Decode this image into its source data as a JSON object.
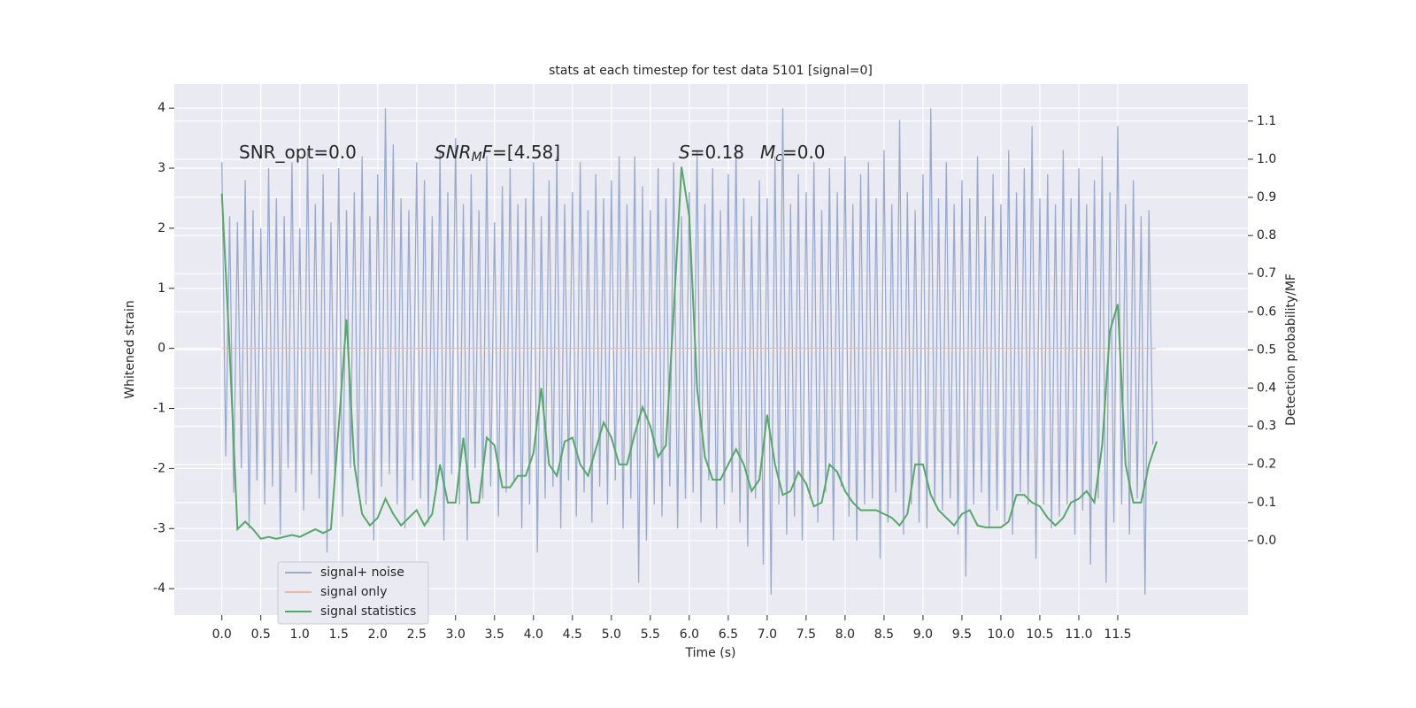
{
  "chart_data": {
    "type": "line",
    "title": "stats at each timestep for test data 5101 [signal=0]",
    "xlabel": "Time (s)",
    "ylabel": "Whitened strain",
    "y2label": "Detection probability/MF",
    "xlim": [
      -0.61,
      13.17
    ],
    "ylim": [
      -4.44,
      4.4
    ],
    "y2lim": [
      -0.195,
      1.197
    ],
    "grid": true,
    "legend": "lower left",
    "xticks": [
      {
        "value": 0,
        "label": "0.0"
      },
      0.5,
      {
        "value": 1,
        "label": "1.0"
      },
      1.5,
      {
        "value": 2,
        "label": "2.0"
      },
      2.5,
      {
        "value": 3,
        "label": "3.0"
      },
      3.5,
      {
        "value": 4,
        "label": "4.0"
      },
      4.5,
      {
        "value": 5,
        "label": "5.0"
      },
      5.5,
      {
        "value": 6,
        "label": "6.0"
      },
      6.5,
      {
        "value": 7,
        "label": "7.0"
      },
      7.5,
      {
        "value": 8,
        "label": "8.0"
      },
      8.5,
      {
        "value": 9,
        "label": "9.0"
      },
      9.5,
      {
        "value": 10,
        "label": "10.0"
      },
      10.5,
      {
        "value": 11,
        "label": "11.0"
      },
      11.5
    ],
    "yticks": [
      -4,
      -3,
      -2,
      -1,
      0,
      1,
      2,
      3,
      4
    ],
    "y2ticks": [
      {
        "value": 0,
        "label": "0.0"
      },
      0.1,
      0.2,
      0.3,
      0.4,
      0.5,
      0.6,
      0.7,
      0.8,
      0.9,
      {
        "value": 1,
        "label": "1.0"
      },
      1.1
    ],
    "annotations": [
      [
        "SNR_opt=0.0"
      ],
      [
        "SNR",
        "M",
        "F",
        "=[4.58]"
      ],
      [
        "S",
        "=0.18",
        "M",
        "c",
        "=0.0"
      ]
    ],
    "series": [
      {
        "name": "signal+ noise",
        "color": "#9aaacf",
        "x": [
          0,
          0.05,
          0.1,
          0.15,
          0.2,
          0.25,
          0.3,
          0.35,
          0.4,
          0.45,
          0.5,
          0.55,
          0.6,
          0.65,
          0.7,
          0.75,
          0.8,
          0.85,
          0.9,
          0.95,
          1,
          1.05,
          1.1,
          1.15,
          1.2,
          1.25,
          1.3,
          1.35,
          1.4,
          1.45,
          1.5,
          1.55,
          1.6,
          1.65,
          1.7,
          1.75,
          1.8,
          1.85,
          1.9,
          1.95,
          2,
          2.05,
          2.1,
          2.15,
          2.2,
          2.25,
          2.3,
          2.35,
          2.4,
          2.45,
          2.5,
          2.55,
          2.6,
          2.65,
          2.7,
          2.75,
          2.8,
          2.85,
          2.9,
          2.95,
          3,
          3.05,
          3.1,
          3.15,
          3.2,
          3.25,
          3.3,
          3.35,
          3.4,
          3.45,
          3.5,
          3.55,
          3.6,
          3.65,
          3.7,
          3.75,
          3.8,
          3.85,
          3.9,
          3.95,
          4,
          4.05,
          4.1,
          4.15,
          4.2,
          4.25,
          4.3,
          4.35,
          4.4,
          4.45,
          4.5,
          4.55,
          4.6,
          4.65,
          4.7,
          4.75,
          4.8,
          4.85,
          4.9,
          4.95,
          5,
          5.05,
          5.1,
          5.15,
          5.2,
          5.25,
          5.3,
          5.35,
          5.4,
          5.45,
          5.5,
          5.55,
          5.6,
          5.65,
          5.7,
          5.75,
          5.8,
          5.85,
          5.9,
          5.95,
          6,
          6.05,
          6.1,
          6.15,
          6.2,
          6.25,
          6.3,
          6.35,
          6.4,
          6.45,
          6.5,
          6.55,
          6.6,
          6.65,
          6.7,
          6.75,
          6.8,
          6.85,
          6.9,
          6.95,
          7,
          7.05,
          7.1,
          7.15,
          7.2,
          7.25,
          7.3,
          7.35,
          7.4,
          7.45,
          7.5,
          7.55,
          7.6,
          7.65,
          7.7,
          7.75,
          7.8,
          7.85,
          7.9,
          7.95,
          8,
          8.05,
          8.1,
          8.15,
          8.2,
          8.25,
          8.3,
          8.35,
          8.4,
          8.45,
          8.5,
          8.55,
          8.6,
          8.65,
          8.7,
          8.75,
          8.8,
          8.85,
          8.9,
          8.95,
          9,
          9.05,
          9.1,
          9.15,
          9.2,
          9.25,
          9.3,
          9.35,
          9.4,
          9.45,
          9.5,
          9.55,
          9.6,
          9.65,
          9.7,
          9.75,
          9.8,
          9.85,
          9.9,
          9.95,
          10,
          10.05,
          10.1,
          10.15,
          10.2,
          10.25,
          10.3,
          10.35,
          10.4,
          10.45,
          10.5,
          10.55,
          10.6,
          10.65,
          10.7,
          10.75,
          10.8,
          10.85,
          10.9,
          10.95,
          11,
          11.05,
          11.1,
          11.15,
          11.2,
          11.25,
          11.3,
          11.35,
          11.4,
          11.45,
          11.5,
          11.55,
          11.6,
          11.65,
          11.7,
          11.75,
          11.8,
          11.85,
          11.9,
          11.95
        ],
        "values": [
          3.1,
          -1.8,
          2.2,
          -2.4,
          2.1,
          -2.0,
          2.8,
          -3.0,
          2.3,
          -2.2,
          2.0,
          -2.6,
          3.0,
          -2.3,
          2.5,
          -3.1,
          2.2,
          -2.0,
          3.1,
          -2.4,
          2.0,
          -2.7,
          3.3,
          -2.1,
          2.4,
          -2.5,
          2.9,
          -3.4,
          2.1,
          -2.2,
          3.0,
          -2.8,
          2.3,
          -2.0,
          2.6,
          -2.4,
          3.2,
          -2.6,
          2.2,
          -3.2,
          2.9,
          -2.3,
          4.0,
          -2.1,
          3.4,
          -2.6,
          2.5,
          -3.0,
          2.3,
          -2.2,
          3.1,
          -2.5,
          2.8,
          -2.9,
          2.2,
          -2.4,
          3.3,
          -3.2,
          2.6,
          -2.1,
          3.5,
          -2.6,
          2.4,
          -3.2,
          2.9,
          -2.0,
          2.3,
          -2.5,
          3.2,
          -2.3,
          2.1,
          -2.8,
          2.7,
          -2.4,
          3.0,
          -2.2,
          2.4,
          -3.0,
          2.5,
          -2.6,
          3.1,
          -3.4,
          2.2,
          -2.5,
          2.8,
          -2.3,
          3.2,
          -3.0,
          2.4,
          -2.2,
          2.6,
          -2.8,
          3.1,
          -2.4,
          2.3,
          -2.9,
          2.9,
          -2.3,
          2.5,
          -2.6,
          2.8,
          -2.2,
          3.2,
          -3.0,
          2.4,
          -2.5,
          3.2,
          -3.9,
          2.7,
          -3.2,
          2.3,
          -2.6,
          3.0,
          -2.8,
          2.5,
          -2.3,
          3.1,
          -3.0,
          2.2,
          -2.5,
          2.6,
          -2.4,
          3.3,
          -2.9,
          2.4,
          -2.2,
          3.0,
          -3.0,
          2.3,
          -2.6,
          2.9,
          -2.4,
          3.4,
          -2.9,
          2.5,
          -3.3,
          2.2,
          -2.5,
          2.8,
          -3.6,
          2.5,
          -4.1,
          3.2,
          -2.6,
          4.0,
          -3.1,
          2.4,
          -2.8,
          2.9,
          -3.2,
          2.6,
          -2.5,
          3.1,
          -2.9,
          2.3,
          -2.4,
          3.0,
          -3.2,
          2.6,
          -2.3,
          3.2,
          -2.8,
          2.4,
          -3.2,
          2.9,
          -2.6,
          3.1,
          -2.5,
          2.5,
          -3.5,
          3.3,
          -2.9,
          2.4,
          -2.4,
          3.8,
          -3.1,
          2.6,
          -2.6,
          2.3,
          -2.9,
          2.9,
          -3.0,
          4.0,
          -2.6,
          2.5,
          -2.7,
          3.1,
          -2.5,
          2.4,
          -3.1,
          2.8,
          -3.8,
          2.5,
          -2.6,
          3.2,
          -2.4,
          2.2,
          -3.0,
          2.9,
          -2.7,
          2.4,
          -2.9,
          3.3,
          -3.1,
          2.6,
          -2.4,
          3.0,
          -2.6,
          3.7,
          -3.5,
          2.5,
          -2.6,
          2.9,
          -3.0,
          2.4,
          -2.8,
          3.3,
          -2.6,
          2.5,
          -3.1,
          3.0,
          -2.7,
          2.4,
          -3.6,
          2.8,
          -2.5,
          3.2,
          -3.9,
          2.6,
          -2.9,
          3.7,
          -2.6,
          2.4,
          -3.1,
          2.8,
          -2.5,
          2.2,
          -4.1,
          2.3,
          -1.6
        ]
      },
      {
        "name": "signal only",
        "color": "#eeb99f",
        "x": [
          0,
          11.99
        ],
        "values": [
          0,
          0
        ]
      },
      {
        "name": "signal statistics",
        "color": "#55a868",
        "axis": "y2",
        "x": [
          0,
          0.1,
          0.2,
          0.3,
          0.4,
          0.5,
          0.6,
          0.7,
          0.8,
          0.9,
          1,
          1.1,
          1.2,
          1.3,
          1.4,
          1.5,
          1.6,
          1.7,
          1.8,
          1.9,
          2,
          2.1,
          2.2,
          2.3,
          2.4,
          2.5,
          2.6,
          2.7,
          2.8,
          2.9,
          3,
          3.1,
          3.2,
          3.3,
          3.4,
          3.5,
          3.6,
          3.7,
          3.8,
          3.9,
          4,
          4.1,
          4.2,
          4.3,
          4.4,
          4.5,
          4.6,
          4.7,
          4.8,
          4.9,
          5,
          5.1,
          5.2,
          5.3,
          5.4,
          5.5,
          5.6,
          5.7,
          5.8,
          5.9,
          6,
          6.1,
          6.2,
          6.3,
          6.4,
          6.5,
          6.6,
          6.7,
          6.8,
          6.9,
          7,
          7.1,
          7.2,
          7.3,
          7.4,
          7.5,
          7.6,
          7.7,
          7.8,
          7.9,
          8,
          8.1,
          8.2,
          8.3,
          8.4,
          8.5,
          8.6,
          8.7,
          8.8,
          8.9,
          9,
          9.1,
          9.2,
          9.3,
          9.4,
          9.5,
          9.6,
          9.7,
          9.8,
          9.9,
          10,
          10.1,
          10.2,
          10.3,
          10.4,
          10.5,
          10.6,
          10.7,
          10.8,
          10.9,
          11,
          11.1,
          11.2,
          11.3,
          11.4,
          11.5,
          11.6,
          11.7,
          11.8,
          11.9,
          12
        ],
        "values": [
          0.91,
          0.5,
          0.03,
          0.05,
          0.03,
          0.005,
          0.01,
          0.005,
          0.01,
          0.015,
          0.01,
          0.02,
          0.03,
          0.02,
          0.03,
          0.3,
          0.58,
          0.2,
          0.07,
          0.04,
          0.06,
          0.11,
          0.07,
          0.04,
          0.06,
          0.08,
          0.04,
          0.07,
          0.2,
          0.1,
          0.1,
          0.27,
          0.1,
          0.1,
          0.27,
          0.25,
          0.14,
          0.14,
          0.17,
          0.17,
          0.23,
          0.4,
          0.2,
          0.17,
          0.26,
          0.27,
          0.2,
          0.17,
          0.24,
          0.31,
          0.27,
          0.2,
          0.2,
          0.28,
          0.35,
          0.3,
          0.22,
          0.25,
          0.6,
          0.98,
          0.85,
          0.4,
          0.22,
          0.16,
          0.16,
          0.2,
          0.24,
          0.2,
          0.13,
          0.16,
          0.33,
          0.2,
          0.12,
          0.13,
          0.18,
          0.15,
          0.09,
          0.1,
          0.2,
          0.18,
          0.13,
          0.1,
          0.08,
          0.08,
          0.08,
          0.07,
          0.06,
          0.04,
          0.07,
          0.2,
          0.2,
          0.12,
          0.08,
          0.06,
          0.04,
          0.07,
          0.08,
          0.04,
          0.035,
          0.035,
          0.035,
          0.05,
          0.12,
          0.12,
          0.1,
          0.09,
          0.06,
          0.04,
          0.06,
          0.1,
          0.11,
          0.13,
          0.1,
          0.25,
          0.55,
          0.62,
          0.2,
          0.1,
          0.1,
          0.2,
          0.26
        ]
      }
    ]
  }
}
